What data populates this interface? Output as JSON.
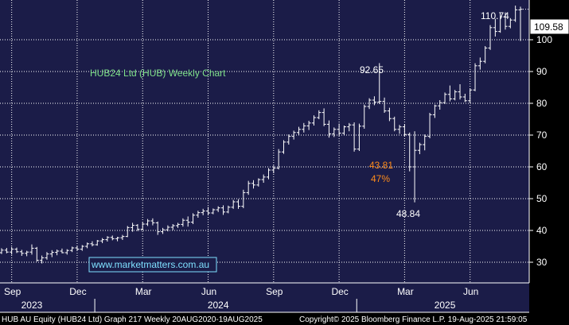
{
  "chart_data": {
    "type": "ohlc",
    "title": "HUB24 Ltd (HUB) Weekly Chart",
    "watermark": "www.marketmatters.com.au",
    "last_price_label": "109.58",
    "y_ticks": [
      30,
      40,
      50,
      60,
      70,
      80,
      90,
      100
    ],
    "ylim": [
      23.5,
      112.5
    ],
    "month_labels": [
      {
        "label": "Sep",
        "idx": 2
      },
      {
        "label": "Dec",
        "idx": 15
      },
      {
        "label": "Mar",
        "idx": 28
      },
      {
        "label": "Jun",
        "idx": 41
      },
      {
        "label": "Sep",
        "idx": 54
      },
      {
        "label": "Dec",
        "idx": 67
      },
      {
        "label": "Mar",
        "idx": 80
      },
      {
        "label": "Jun",
        "idx": 93
      }
    ],
    "year_labels": [
      {
        "label": "2023",
        "idx": 6
      },
      {
        "label": "2024",
        "idx": 43
      },
      {
        "label": "2025",
        "idx": 88
      }
    ],
    "year_dividers": [
      19,
      71
    ],
    "annotations": [
      {
        "text": "110.74",
        "color": "#ffffff",
        "role": "peak-high"
      },
      {
        "text": "92.65",
        "color": "#ffffff",
        "role": "swing-high"
      },
      {
        "text": "48.84",
        "color": "#ffffff",
        "role": "swing-low"
      },
      {
        "text": "43.81",
        "color": "#ff8c1a",
        "role": "fall-size"
      },
      {
        "text": "47%",
        "color": "#ff8c1a",
        "role": "fall-pct"
      }
    ],
    "ohlc": [
      [
        33.0,
        34.4,
        32.6,
        33.8
      ],
      [
        33.8,
        34.5,
        32.8,
        33.2
      ],
      [
        33.2,
        34.8,
        32.4,
        34.1
      ],
      [
        34.1,
        34.6,
        32.9,
        33.3
      ],
      [
        33.3,
        33.9,
        32.0,
        32.8
      ],
      [
        32.8,
        33.6,
        31.9,
        33.2
      ],
      [
        33.2,
        35.6,
        32.4,
        34.4
      ],
      [
        34.4,
        34.8,
        30.2,
        30.6
      ],
      [
        30.6,
        32.1,
        29.6,
        31.4
      ],
      [
        31.4,
        33.2,
        30.8,
        32.6
      ],
      [
        32.6,
        33.8,
        31.6,
        33.1
      ],
      [
        33.1,
        34.0,
        32.2,
        33.5
      ],
      [
        33.5,
        34.3,
        32.8,
        33.0
      ],
      [
        33.0,
        34.1,
        32.4,
        33.7
      ],
      [
        33.7,
        34.9,
        33.2,
        34.5
      ],
      [
        34.5,
        35.2,
        33.7,
        34.1
      ],
      [
        34.1,
        35.4,
        33.6,
        35.0
      ],
      [
        35.0,
        36.2,
        34.4,
        35.8
      ],
      [
        35.8,
        36.6,
        35.0,
        35.5
      ],
      [
        35.5,
        37.0,
        35.2,
        36.7
      ],
      [
        36.7,
        37.6,
        36.0,
        37.1
      ],
      [
        37.1,
        38.2,
        36.5,
        37.8
      ],
      [
        37.8,
        38.4,
        36.9,
        37.4
      ],
      [
        37.4,
        38.0,
        36.6,
        37.7
      ],
      [
        37.7,
        38.6,
        37.0,
        38.1
      ],
      [
        38.1,
        41.4,
        37.9,
        40.9
      ],
      [
        40.9,
        42.4,
        39.6,
        41.6
      ],
      [
        41.6,
        42.0,
        39.8,
        40.4
      ],
      [
        40.4,
        42.6,
        40.0,
        42.0
      ],
      [
        42.0,
        43.6,
        41.4,
        43.0
      ],
      [
        43.0,
        43.8,
        41.6,
        42.4
      ],
      [
        42.4,
        42.8,
        38.6,
        39.6
      ],
      [
        39.6,
        40.8,
        38.9,
        40.2
      ],
      [
        40.2,
        41.6,
        39.7,
        41.0
      ],
      [
        41.0,
        42.0,
        40.1,
        41.5
      ],
      [
        41.5,
        42.4,
        40.8,
        41.9
      ],
      [
        41.9,
        43.8,
        41.2,
        43.2
      ],
      [
        43.2,
        44.4,
        41.2,
        42.6
      ],
      [
        42.6,
        45.4,
        42.0,
        44.8
      ],
      [
        44.8,
        46.2,
        44.0,
        45.6
      ],
      [
        45.6,
        46.8,
        44.8,
        46.1
      ],
      [
        46.1,
        47.4,
        45.0,
        45.5
      ],
      [
        45.5,
        46.9,
        45.1,
        46.5
      ],
      [
        46.5,
        47.6,
        45.8,
        47.1
      ],
      [
        47.1,
        47.9,
        44.9,
        45.8
      ],
      [
        45.8,
        47.8,
        45.4,
        47.3
      ],
      [
        47.3,
        49.6,
        46.8,
        49.0
      ],
      [
        49.0,
        49.8,
        46.8,
        47.6
      ],
      [
        47.6,
        52.8,
        47.0,
        51.9
      ],
      [
        51.9,
        55.6,
        51.2,
        54.8
      ],
      [
        54.8,
        55.8,
        53.2,
        54.3
      ],
      [
        54.3,
        56.4,
        53.8,
        56.0
      ],
      [
        56.0,
        57.6,
        55.0,
        56.8
      ],
      [
        56.8,
        59.6,
        56.1,
        59.0
      ],
      [
        59.0,
        60.4,
        58.0,
        59.6
      ],
      [
        59.6,
        65.6,
        59.2,
        64.7
      ],
      [
        64.7,
        68.4,
        64.1,
        67.8
      ],
      [
        67.8,
        70.2,
        67.0,
        69.6
      ],
      [
        69.6,
        71.4,
        68.6,
        70.8
      ],
      [
        70.8,
        72.6,
        70.1,
        71.8
      ],
      [
        71.8,
        73.8,
        70.8,
        72.9
      ],
      [
        72.9,
        74.5,
        71.6,
        73.8
      ],
      [
        73.8,
        76.2,
        73.0,
        75.5
      ],
      [
        75.5,
        77.8,
        75.0,
        77.1
      ],
      [
        77.1,
        78.4,
        72.8,
        73.4
      ],
      [
        73.4,
        74.6,
        69.2,
        70.4
      ],
      [
        70.4,
        72.4,
        69.4,
        71.8
      ],
      [
        71.8,
        73.6,
        69.8,
        70.6
      ],
      [
        70.6,
        73.0,
        70.0,
        72.6
      ],
      [
        72.6,
        73.8,
        71.2,
        73.2
      ],
      [
        73.2,
        74.0,
        64.8,
        65.6
      ],
      [
        65.6,
        73.6,
        65.0,
        72.8
      ],
      [
        72.8,
        79.6,
        72.0,
        79.0
      ],
      [
        79.0,
        81.6,
        78.2,
        81.0
      ],
      [
        81.0,
        82.2,
        79.4,
        80.4
      ],
      [
        80.4,
        92.65,
        79.8,
        80.6
      ],
      [
        80.6,
        81.8,
        77.0,
        77.6
      ],
      [
        77.6,
        78.6,
        74.4,
        75.2
      ],
      [
        75.2,
        75.8,
        71.2,
        71.8
      ],
      [
        71.8,
        73.2,
        70.4,
        72.6
      ],
      [
        72.6,
        73.4,
        69.6,
        70.2
      ],
      [
        70.2,
        70.8,
        58.6,
        60.0
      ],
      [
        60.0,
        71.2,
        48.84,
        65.2
      ],
      [
        65.2,
        67.6,
        64.0,
        67.0
      ],
      [
        67.0,
        70.2,
        65.2,
        69.6
      ],
      [
        69.6,
        77.0,
        69.0,
        76.4
      ],
      [
        76.4,
        79.6,
        75.4,
        79.2
      ],
      [
        79.2,
        81.0,
        78.0,
        80.2
      ],
      [
        80.2,
        83.4,
        79.8,
        82.8
      ],
      [
        82.8,
        85.6,
        80.6,
        81.4
      ],
      [
        81.4,
        84.2,
        80.9,
        83.6
      ],
      [
        83.6,
        86.0,
        81.2,
        82.0
      ],
      [
        82.0,
        83.0,
        80.4,
        80.8
      ],
      [
        80.8,
        84.6,
        80.2,
        84.2
      ],
      [
        84.2,
        92.6,
        83.8,
        91.8
      ],
      [
        91.8,
        94.4,
        90.6,
        93.2
      ],
      [
        93.2,
        98.0,
        92.6,
        97.4
      ],
      [
        97.4,
        104.6,
        96.8,
        103.8
      ],
      [
        103.8,
        106.6,
        101.0,
        102.6
      ],
      [
        102.6,
        108.4,
        102.2,
        107.2
      ],
      [
        107.2,
        108.6,
        103.2,
        104.2
      ],
      [
        104.2,
        106.8,
        103.6,
        106.2
      ],
      [
        106.2,
        110.74,
        105.6,
        109.4
      ],
      [
        109.4,
        110.4,
        99.6,
        109.58
      ]
    ]
  },
  "footer": {
    "left": "HUB AU Equity (HUB24 Ltd) Graph 217  Weekly 20AUG2020-19AUG2025",
    "right": "Copyright© 2025 Bloomberg Finance L.P.      19-Aug-2025 21:59:05"
  },
  "colors": {
    "plot_bg": "#1b1c48",
    "grid": "#ffffff",
    "bars": "#ffffff",
    "title": "#7fe08a",
    "watermark": "#7fe0ff",
    "accent": "#ff8c1a"
  }
}
